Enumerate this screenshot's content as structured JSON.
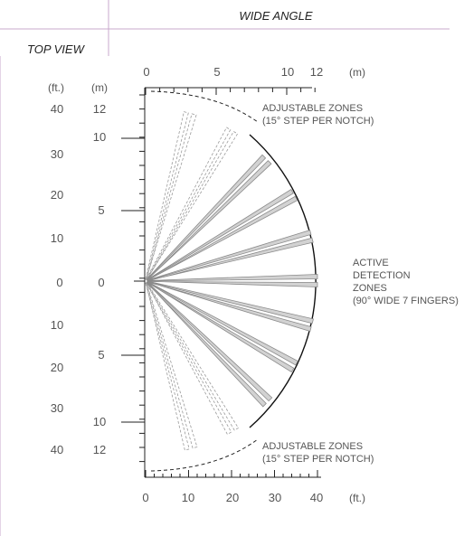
{
  "header": {
    "title": "WIDE ANGLE",
    "view_label": "TOP VIEW"
  },
  "top_axis": {
    "unit": "(m)",
    "ticks": [
      "0",
      "5",
      "10",
      "12"
    ]
  },
  "bottom_axis": {
    "unit": "(ft.)",
    "ticks": [
      "0",
      "10",
      "20",
      "30",
      "40"
    ]
  },
  "left_axis": {
    "ft_unit": "(ft.)",
    "m_unit": "(m)",
    "ft_ticks": [
      "40",
      "30",
      "20",
      "10",
      "0",
      "10",
      "20",
      "30",
      "40"
    ],
    "m_ticks": [
      "12",
      "10",
      "5",
      "0",
      "5",
      "10",
      "12"
    ]
  },
  "annotations": {
    "adjustable_top": [
      "ADJUSTABLE ZONES",
      "(15° STEP  PER  NOTCH)"
    ],
    "active": [
      "ACTIVE",
      "DETECTION",
      "ZONES",
      "(90° WIDE 7 FINGERS)"
    ],
    "adjustable_bottom": [
      "ADJUSTABLE ZONES",
      "(15° STEP  PER  NOTCH)"
    ]
  },
  "colors": {
    "active_finger_fill": "#d2d2d2",
    "active_finger_stroke": "#8a8a8a",
    "adjustable_finger_stroke": "#9a9a9a",
    "frame_line": "#c9a8cc",
    "axis_line": "#222222"
  },
  "zones": {
    "active_angles_deg": [
      -45,
      -30,
      -15,
      0,
      15,
      30,
      45
    ],
    "adjustable_angles_deg": [
      -75,
      -60,
      60,
      75
    ],
    "active_span_deg": 90,
    "adjustable_step_deg": 15,
    "finger_count": 7
  }
}
